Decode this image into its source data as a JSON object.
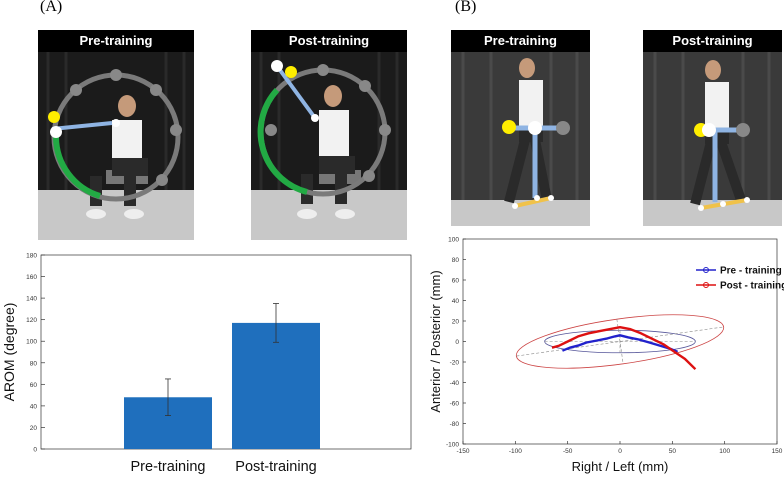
{
  "panels": {
    "a_label": "(A)",
    "b_label": "(B)"
  },
  "photos": {
    "a_pre_title": "Pre-training",
    "a_post_title": "Post-training",
    "b_pre_title": "Pre-training",
    "b_post_title": "Post-training"
  },
  "colors": {
    "bar": "#1f6fbd",
    "pre_line": "#2222cc",
    "post_line": "#dd1111",
    "ellipse_pre": "#555599",
    "ellipse_post": "#cc4444",
    "arm_line": "#8fb4e3",
    "leg_line": "#f0c24a",
    "ring": "#7a7a7a",
    "ring_active": "#22aa44",
    "yellow_dot": "#ffee00",
    "curtain": "#1b1b1b"
  },
  "chart_data": [
    {
      "type": "bar",
      "categories": [
        "Pre-training",
        "Post-training"
      ],
      "values": [
        48,
        117
      ],
      "errors": [
        17,
        18
      ],
      "ylabel": "AROM (degree)",
      "xlabel": "",
      "ylim": [
        0,
        180
      ],
      "yticks": [
        "0",
        "20",
        "40",
        "60",
        "80",
        "100",
        "120",
        "140",
        "160",
        "180"
      ],
      "grid": false
    },
    {
      "type": "line",
      "xlabel": "Right / Left (mm)",
      "ylabel": "Anterior / Posterior (mm)",
      "xlim": [
        -150,
        150
      ],
      "ylim": [
        -100,
        100
      ],
      "xticks": [
        "-150",
        "-100",
        "-50",
        "0",
        "50",
        "100",
        "150"
      ],
      "yticks": [
        "-100",
        "-80",
        "-60",
        "-40",
        "-20",
        "0",
        "20",
        "40",
        "60",
        "80",
        "100"
      ],
      "legend_position": "top-right",
      "series": [
        {
          "name": "Pre - training",
          "x": [
            -55,
            -48,
            -40,
            -32,
            -22,
            -12,
            -5,
            0,
            8,
            18,
            28,
            38,
            48,
            55
          ],
          "y": [
            -9,
            -6,
            -4,
            -1,
            1,
            3,
            5,
            6,
            4,
            2,
            -1,
            -4,
            -7,
            -10
          ]
        },
        {
          "name": "Post - training",
          "x": [
            -65,
            -58,
            -50,
            -40,
            -30,
            -20,
            -10,
            0,
            10,
            20,
            30,
            42,
            52,
            62,
            72
          ],
          "y": [
            -6,
            -4,
            0,
            5,
            8,
            10,
            12,
            14,
            12,
            8,
            3,
            -3,
            -10,
            -17,
            -27
          ]
        }
      ],
      "ellipses": [
        {
          "name": "Pre - training",
          "cx": 0,
          "cy": 0,
          "rx": 72,
          "ry": 11,
          "angle_deg": 0
        },
        {
          "name": "Post - training",
          "cx": 0,
          "cy": 0,
          "rx": 100,
          "ry": 22,
          "angle_deg": -8
        }
      ]
    }
  ]
}
